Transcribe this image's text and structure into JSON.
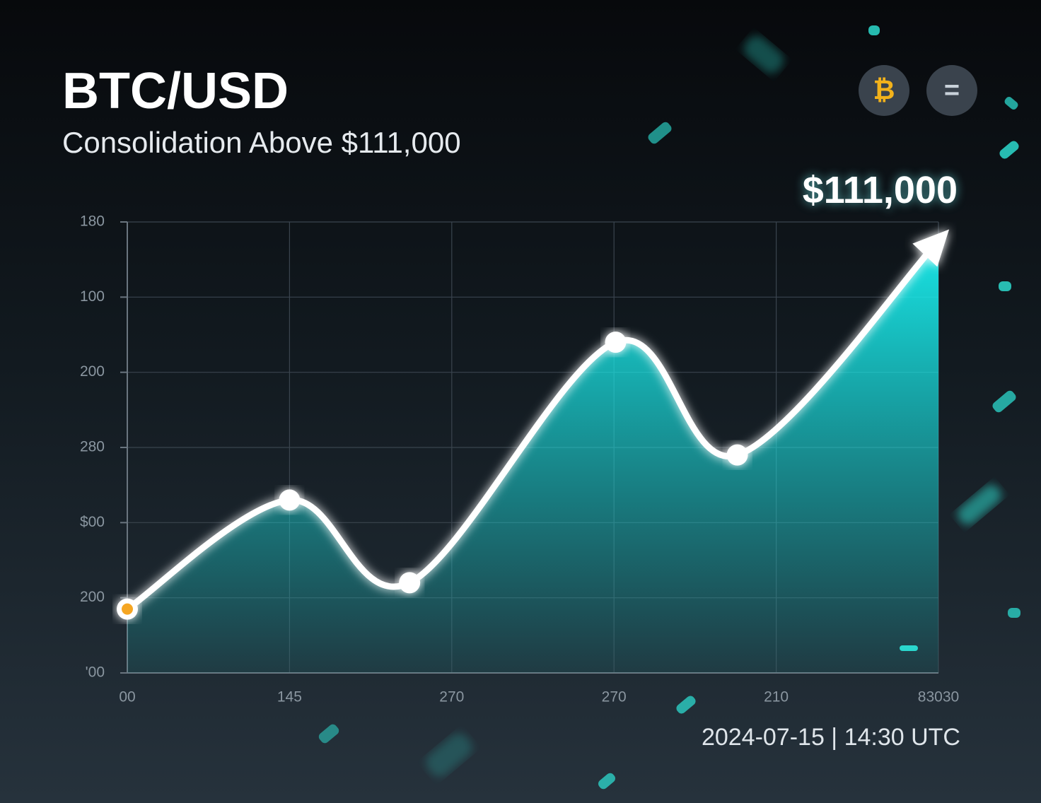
{
  "toolbar": [
    "₿",
    "="
  ],
  "chart_data": {
    "type": "line",
    "title": "BTC/USD",
    "subtitle": "Consolidation Above $111,000",
    "annotation": "$111,000",
    "timestamp": "2024-07-15 | 14:30 UTC",
    "x": [
      0,
      1,
      1.74,
      3.01,
      3.76,
      5
    ],
    "values": [
      0.85,
      2.3,
      1.2,
      4.4,
      2.9,
      5.75
    ],
    "color": "#ffffff",
    "fill_color": "#19f0f0",
    "xlim": [
      0,
      5
    ],
    "ylim": [
      0,
      6
    ],
    "xticks": [
      {
        "value": 0,
        "label": "00"
      },
      {
        "value": 1,
        "label": "145"
      },
      {
        "value": 2,
        "label": "270"
      },
      {
        "value": 3,
        "label": "270"
      },
      {
        "value": 4,
        "label": "210"
      },
      {
        "value": 5,
        "label": "83030"
      }
    ],
    "yticks": [
      {
        "value": 0,
        "label": "'00"
      },
      {
        "value": 1,
        "label": "200"
      },
      {
        "value": 2,
        "label": "$00"
      },
      {
        "value": 3,
        "label": "280"
      },
      {
        "value": 4,
        "label": "200"
      },
      {
        "value": 5,
        "label": "100"
      },
      {
        "value": 6,
        "label": "180"
      }
    ],
    "grid": true
  }
}
